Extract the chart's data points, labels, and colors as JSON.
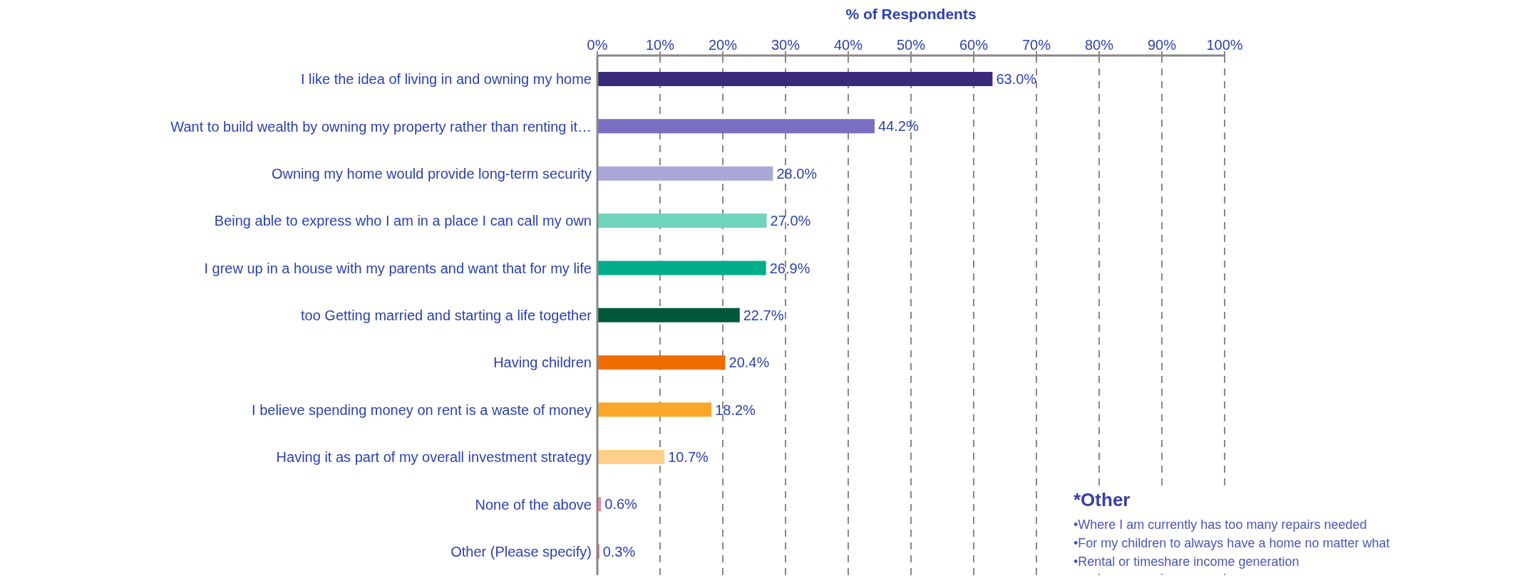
{
  "chart_data": {
    "type": "bar",
    "orientation": "horizontal",
    "xlabel": "% of Respondents",
    "categories": [
      "I like the idea of living in and owning my home",
      "Want to build wealth by owning my property rather than renting it…",
      "Owning my home would provide long-term security",
      "Being able to express who I am in a place I can call my own",
      "I grew up in a house with my parents and want that for my life",
      "too Getting married and starting a life together",
      "Having children",
      "I believe spending money on rent is a waste of money",
      "Having it as part of my overall investment strategy",
      "None of the above",
      "Other (Please specify)"
    ],
    "values": [
      63.0,
      44.2,
      28.0,
      27.0,
      26.9,
      22.7,
      20.4,
      18.2,
      10.7,
      0.6,
      0.3
    ],
    "value_labels": [
      "63.0%",
      "44.2%",
      "28.0%",
      "27.0%",
      "26.9%",
      "22.7%",
      "20.4%",
      "18.2%",
      "10.7%",
      "0.6%",
      "0.3%"
    ],
    "colors": [
      "#3a2a7c",
      "#7a6fc2",
      "#aaa7d8",
      "#6fd4b9",
      "#00ad8b",
      "#00573b",
      "#ee6c00",
      "#f9a62a",
      "#fdcf88",
      "#ef8aa0",
      "#e2456f"
    ],
    "xlim": [
      0,
      100
    ],
    "xticks": [
      {
        "value": 0,
        "label": "0%"
      },
      {
        "value": 10,
        "label": "10%"
      },
      {
        "value": 20,
        "label": "20%"
      },
      {
        "value": 30,
        "label": "30%"
      },
      {
        "value": 40,
        "label": "40%"
      },
      {
        "value": 50,
        "label": "50%"
      },
      {
        "value": 60,
        "label": "60%"
      },
      {
        "value": 70,
        "label": "70%"
      },
      {
        "value": 80,
        "label": "80%"
      },
      {
        "value": 90,
        "label": "90%"
      },
      {
        "value": 100,
        "label": "100%"
      }
    ],
    "grid": "x",
    "annotations": [
      "*Other",
      "•Where I am currently has too many repairs needed",
      "•For my children to always have a home no matter what",
      "•Rental or timeshare income generation"
    ]
  }
}
